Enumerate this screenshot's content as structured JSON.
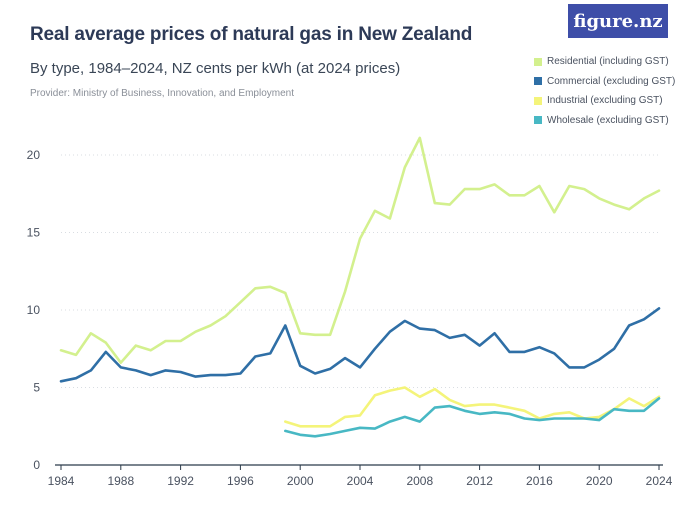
{
  "header": {
    "title": "Real average prices of natural gas in New Zealand",
    "subtitle": "By type, 1984–2024, NZ cents per kWh (at 2024 prices)",
    "provider": "Provider: Ministry of Business, Innovation, and Employment",
    "logo": "figure.nz"
  },
  "colors": {
    "residential": "#d3f08e",
    "commercial": "#2f6fa6",
    "industrial": "#f4f47a",
    "wholesale": "#48b8c4",
    "logo_bg": "#3e4ea8"
  },
  "chart_data": {
    "type": "line",
    "title": "Real average prices of natural gas in New Zealand",
    "subtitle": "By type, 1984–2024, NZ cents per kWh (at 2024 prices)",
    "xlabel": "",
    "ylabel": "",
    "xlim": [
      1984,
      2024
    ],
    "ylim": [
      0,
      20
    ],
    "x_ticks": [
      "1984",
      "1988",
      "1992",
      "1996",
      "2000",
      "2004",
      "2008",
      "2012",
      "2016",
      "2020",
      "2024"
    ],
    "y_ticks": [
      "0",
      "5",
      "10",
      "15",
      "20"
    ],
    "grid": "horizontal",
    "legend": "top-right",
    "series": [
      {
        "name": "Residential (including GST)",
        "color": "#d3f08e",
        "x": [
          1984,
          1985,
          1986,
          1987,
          1988,
          1989,
          1990,
          1991,
          1992,
          1993,
          1994,
          1995,
          1996,
          1997,
          1998,
          1999,
          2000,
          2001,
          2002,
          2003,
          2004,
          2005,
          2006,
          2007,
          2008,
          2009,
          2010,
          2011,
          2012,
          2013,
          2014,
          2015,
          2016,
          2017,
          2018,
          2019,
          2020,
          2021,
          2022,
          2023,
          2024
        ],
        "y": [
          7.4,
          7.1,
          8.5,
          7.9,
          6.6,
          7.7,
          7.4,
          8.0,
          8.0,
          8.6,
          9.0,
          9.6,
          10.5,
          11.4,
          11.5,
          11.1,
          8.5,
          8.4,
          8.4,
          11.2,
          14.6,
          16.4,
          15.9,
          19.2,
          21.1,
          16.9,
          16.8,
          17.8,
          17.8,
          18.1,
          17.4,
          17.4,
          18.0,
          16.3,
          18.0,
          17.8,
          17.2,
          16.8,
          16.5,
          17.2,
          17.7
        ]
      },
      {
        "name": "Commercial (excluding GST)",
        "color": "#2f6fa6",
        "x": [
          1984,
          1985,
          1986,
          1987,
          1988,
          1989,
          1990,
          1991,
          1992,
          1993,
          1994,
          1995,
          1996,
          1997,
          1998,
          1999,
          2000,
          2001,
          2002,
          2003,
          2004,
          2005,
          2006,
          2007,
          2008,
          2009,
          2010,
          2011,
          2012,
          2013,
          2014,
          2015,
          2016,
          2017,
          2018,
          2019,
          2020,
          2021,
          2022,
          2023,
          2024
        ],
        "y": [
          5.4,
          5.6,
          6.1,
          7.3,
          6.3,
          6.1,
          5.8,
          6.1,
          6.0,
          5.7,
          5.8,
          5.8,
          5.9,
          7.0,
          7.2,
          9.0,
          6.4,
          5.9,
          6.2,
          6.9,
          6.3,
          7.5,
          8.6,
          9.3,
          8.8,
          8.7,
          8.2,
          8.4,
          7.7,
          8.5,
          7.3,
          7.3,
          7.6,
          7.2,
          6.3,
          6.3,
          6.8,
          7.5,
          9.0,
          9.4,
          10.1
        ]
      },
      {
        "name": "Industrial (excluding GST)",
        "color": "#f4f47a",
        "x": [
          1999,
          2000,
          2001,
          2002,
          2003,
          2004,
          2005,
          2006,
          2007,
          2008,
          2009,
          2010,
          2011,
          2012,
          2013,
          2014,
          2015,
          2016,
          2017,
          2018,
          2019,
          2020,
          2021,
          2022,
          2023,
          2024
        ],
        "y": [
          2.8,
          2.5,
          2.5,
          2.5,
          3.1,
          3.2,
          4.5,
          4.8,
          5.0,
          4.4,
          4.9,
          4.2,
          3.8,
          3.9,
          3.9,
          3.7,
          3.5,
          3.0,
          3.3,
          3.4,
          3.0,
          3.1,
          3.6,
          4.3,
          3.8,
          4.4
        ]
      },
      {
        "name": "Wholesale (excluding GST)",
        "color": "#48b8c4",
        "x": [
          1999,
          2000,
          2001,
          2002,
          2003,
          2004,
          2005,
          2006,
          2007,
          2008,
          2009,
          2010,
          2011,
          2012,
          2013,
          2014,
          2015,
          2016,
          2017,
          2018,
          2019,
          2020,
          2021,
          2022,
          2023,
          2024
        ],
        "y": [
          2.2,
          1.95,
          1.85,
          2.0,
          2.2,
          2.4,
          2.35,
          2.8,
          3.1,
          2.8,
          3.7,
          3.8,
          3.5,
          3.3,
          3.4,
          3.3,
          3.0,
          2.9,
          3.0,
          3.0,
          3.0,
          2.9,
          3.6,
          3.5,
          3.5,
          4.3
        ]
      }
    ]
  }
}
